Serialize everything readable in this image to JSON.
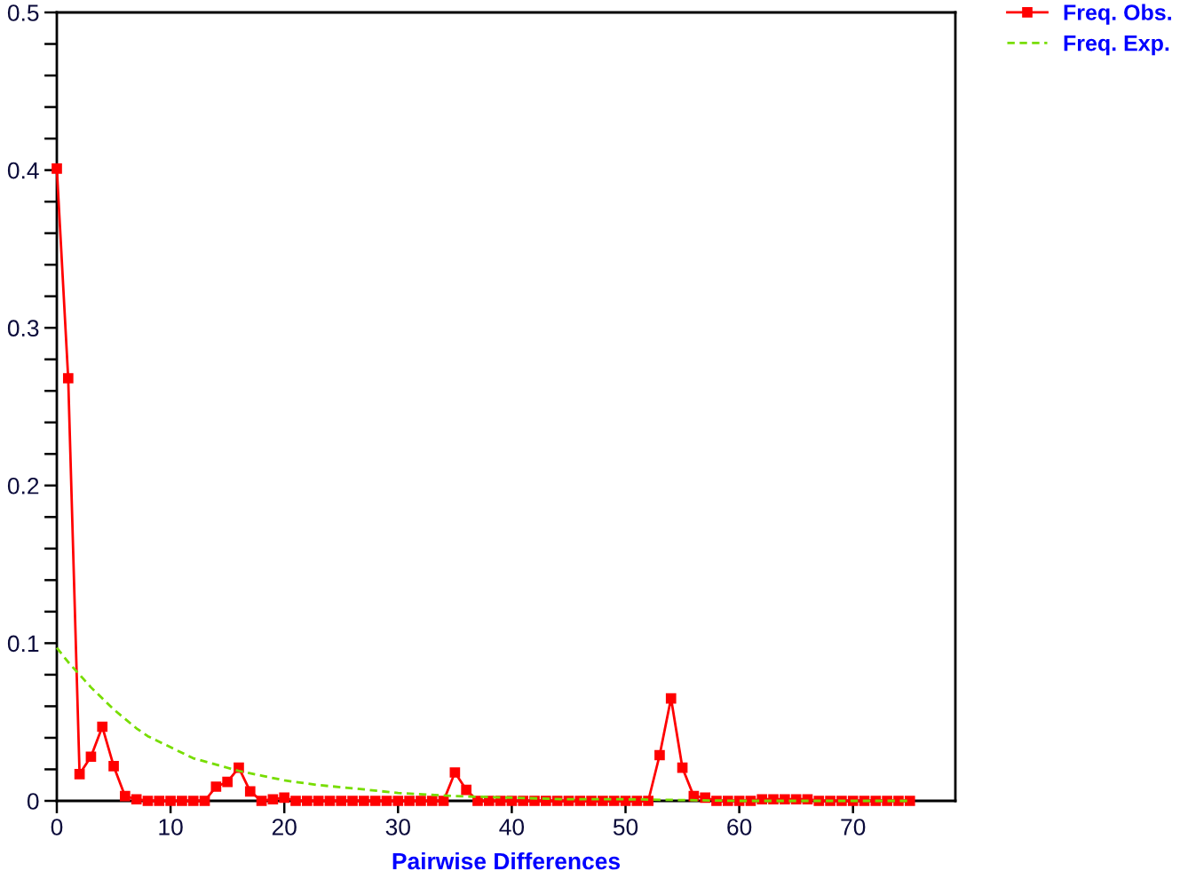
{
  "chart_data": {
    "type": "line",
    "xlabel": "Pairwise Differences",
    "xlim": [
      0,
      79
    ],
    "xticks": [
      0,
      10,
      20,
      30,
      40,
      50,
      60,
      70
    ],
    "ylim": [
      0,
      0.5
    ],
    "yticks": [
      0,
      {
        "value": 0.02,
        "label": null
      },
      {
        "value": 0.04,
        "label": null
      },
      {
        "value": 0.06,
        "label": null
      },
      {
        "value": 0.08,
        "label": null
      },
      0.1,
      {
        "value": 0.12,
        "label": null
      },
      {
        "value": 0.14,
        "label": null
      },
      {
        "value": 0.16,
        "label": null
      },
      {
        "value": 0.18,
        "label": null
      },
      0.2,
      {
        "value": 0.22,
        "label": null
      },
      {
        "value": 0.24,
        "label": null
      },
      {
        "value": 0.26,
        "label": null
      },
      {
        "value": 0.28,
        "label": null
      },
      0.3,
      {
        "value": 0.32,
        "label": null
      },
      {
        "value": 0.34,
        "label": null
      },
      {
        "value": 0.36,
        "label": null
      },
      {
        "value": 0.38,
        "label": null
      },
      0.4,
      {
        "value": 0.42,
        "label": null
      },
      {
        "value": 0.44,
        "label": null
      },
      {
        "value": 0.46,
        "label": null
      },
      {
        "value": 0.48,
        "label": null
      },
      0.5
    ],
    "legend": "top right",
    "series": [
      {
        "name": "Freq. Obs.",
        "color": "#ff0000",
        "marker": "square",
        "line_style": "solid",
        "x": [
          0,
          1,
          2,
          3,
          4,
          5,
          6,
          7,
          8,
          9,
          10,
          11,
          12,
          13,
          14,
          15,
          16,
          17,
          18,
          19,
          20,
          21,
          22,
          23,
          24,
          25,
          26,
          27,
          28,
          29,
          30,
          31,
          32,
          33,
          34,
          35,
          36,
          37,
          38,
          39,
          40,
          41,
          42,
          43,
          44,
          45,
          46,
          47,
          48,
          49,
          50,
          51,
          52,
          53,
          54,
          55,
          56,
          57,
          58,
          59,
          60,
          61,
          62,
          63,
          64,
          65,
          66,
          67,
          68,
          69,
          70,
          71,
          72,
          73,
          74,
          75
        ],
        "values": [
          0.401,
          0.268,
          0.017,
          0.028,
          0.047,
          0.022,
          0.003,
          0.001,
          0,
          0,
          0,
          0,
          0,
          0,
          0.009,
          0.012,
          0.021,
          0.006,
          0,
          0.001,
          0.002,
          0,
          0,
          0,
          0,
          0,
          0,
          0,
          0,
          0,
          0,
          0,
          0,
          0,
          0,
          0.018,
          0.007,
          0,
          0,
          0,
          0,
          0,
          0,
          0,
          0,
          0,
          0,
          0,
          0,
          0,
          0,
          0,
          0,
          0.029,
          0.065,
          0.021,
          0.003,
          0.002,
          0,
          0,
          0,
          0,
          0.001,
          0.001,
          0.001,
          0.001,
          0.001,
          0,
          0,
          0,
          0,
          0,
          0,
          0,
          0,
          0
        ]
      },
      {
        "name": "Freq. Exp.",
        "color": "#77dd00",
        "marker": "none",
        "line_style": "dashed",
        "x": [
          0,
          1,
          2,
          3,
          4,
          5,
          6,
          7,
          8,
          10,
          12,
          14,
          16,
          18,
          20,
          23,
          26,
          30,
          35,
          40,
          45,
          50,
          60,
          75
        ],
        "values": [
          0.097,
          0.088,
          0.08,
          0.072,
          0.065,
          0.058,
          0.052,
          0.046,
          0.041,
          0.034,
          0.027,
          0.023,
          0.019,
          0.016,
          0.013,
          0.01,
          0.008,
          0.005,
          0.003,
          0.002,
          0.001,
          0.001,
          0,
          0
        ]
      }
    ]
  }
}
